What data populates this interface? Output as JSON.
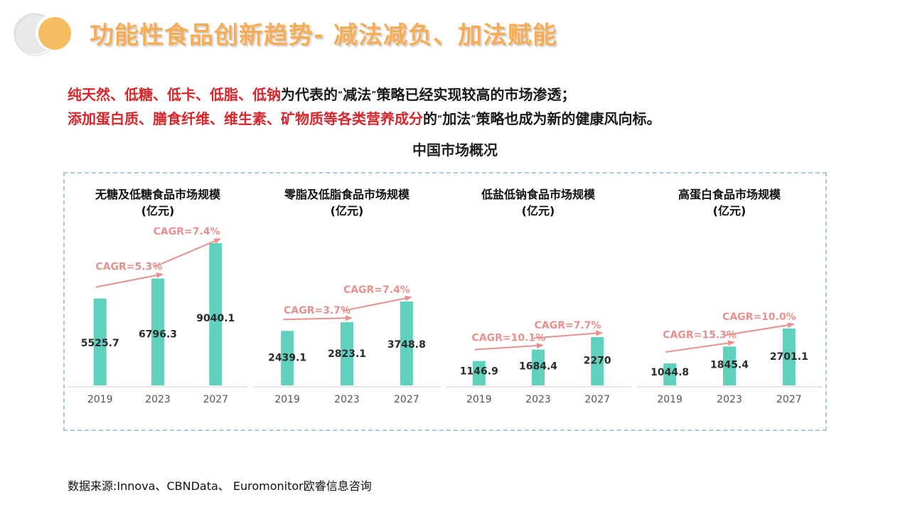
{
  "header": {
    "title": "功能性食品创新趋势- 减法减负、加法赋能"
  },
  "intro": {
    "line1": {
      "highlight": "纯天然、低糖、低卡、低脂、低钠",
      "pre": "为代表的",
      "q_open": "“",
      "keyword": "减法",
      "q_close": "”",
      "rest": "策略已经实现较高的市场渗透；"
    },
    "line2": {
      "highlight": "添加蛋白质、膳食纤维、维生素、矿物质等各类营养成分",
      "pre": "的",
      "q_open": "“",
      "keyword": "加法",
      "q_close": "”",
      "rest": "策略也成为新的健康风向标。"
    }
  },
  "market_title": "中国市场概况",
  "source": "数据来源:Innova、CBNData、 Euromonitor欧睿信息咨询",
  "colors": {
    "bar": "#5fd1bd",
    "arrow": "#e8908d",
    "title": "#f6ad55",
    "highlight": "#d7262b",
    "border": "#a9c9e3"
  },
  "chart_data": [
    {
      "type": "bar",
      "title_line1": "无糖及低糖食品市场规模",
      "title_line2": "(亿元)",
      "categories": [
        "2019",
        "2023",
        "2027"
      ],
      "values": [
        5525.7,
        6796.3,
        9040.1
      ],
      "value_labels": [
        "5525.7",
        "6796.3",
        "9040.1"
      ],
      "cagr": [
        "CAGR=5.3%",
        "CAGR=7.4%"
      ],
      "ylim": [
        0,
        9040.1
      ]
    },
    {
      "type": "bar",
      "title_line1": "零脂及低脂食品市场规模",
      "title_line2": "(亿元)",
      "categories": [
        "2019",
        "2023",
        "2027"
      ],
      "values": [
        2439.1,
        2823.1,
        3748.8
      ],
      "value_labels": [
        "2439.1",
        "2823.1",
        "3748.8"
      ],
      "cagr": [
        "CAGR=3.7%",
        "CAGR=7.4%"
      ],
      "ylim": [
        0,
        3748.8
      ]
    },
    {
      "type": "bar",
      "title_line1": "低盐低钠食品市场规模",
      "title_line2": "(亿元)",
      "categories": [
        "2019",
        "2023",
        "2027"
      ],
      "values": [
        1146.9,
        1684.4,
        2270
      ],
      "value_labels": [
        "1146.9",
        "1684.4",
        "2270"
      ],
      "cagr": [
        "CAGR=10.1%",
        "CAGR=7.7%"
      ],
      "ylim": [
        0,
        2270
      ]
    },
    {
      "type": "bar",
      "title_line1": "高蛋白食品市场规模",
      "title_line2": "(亿元)",
      "categories": [
        "2019",
        "2023",
        "2027"
      ],
      "values": [
        1044.8,
        1845.4,
        2701.1
      ],
      "value_labels": [
        "1044.8",
        "1845.4",
        "2701.1"
      ],
      "cagr": [
        "CAGR=15.3%",
        "CAGR=10.0%"
      ],
      "ylim": [
        0,
        2701.1
      ]
    }
  ]
}
